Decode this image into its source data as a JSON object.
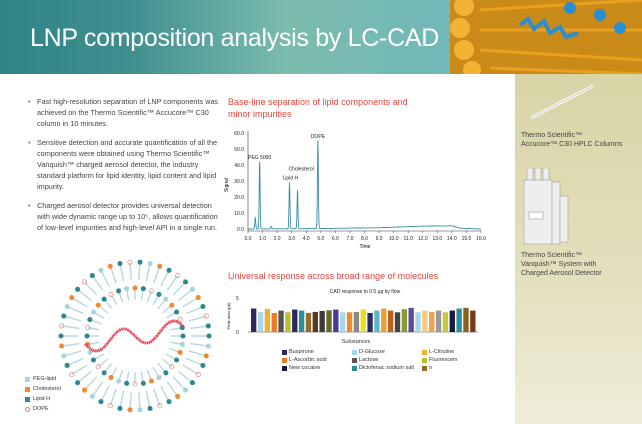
{
  "header": {
    "title": "LNP composition analysis by LC-CAD"
  },
  "bullets": [
    "Fast high-resolution separation of LNP components was achieved on the Thermo Scientific™ Accucore™ C30 column in 10 minutes.",
    "Sensitive detection and accurate quantification of all the components were obtained using Thermo Scientific™ Vanquish™ charged aerosol detector, the industry standard platform for lipid identity, lipid content and lipid impurity.",
    "Charged aerosol detector provides universal detection with wide dynamic range up to 10⁵, allows quantification of low-level impurities and high-level API in a single run."
  ],
  "lnp_legend": [
    {
      "label": "PEG-lipid",
      "color": "#a8d4e0"
    },
    {
      "label": "Cholesterol",
      "color": "#f08a30"
    },
    {
      "label": "Lipid H",
      "color": "#2a8a90"
    },
    {
      "label": "DOPE",
      "color": "#e88080"
    }
  ],
  "sidebar": {
    "column_caption": [
      "Thermo Scientific™",
      "Accucore™ C30 HPLC Columns"
    ],
    "system_caption": [
      "Thermo Scientific™",
      "Vanquish™ System with",
      "Charged Aerosol Detector"
    ]
  },
  "chart_data": [
    {
      "type": "line",
      "title": "Base-line separation of lipid components and minor impurities",
      "xlabel": "Time",
      "ylabel": "Signal",
      "xlim": [
        0,
        16
      ],
      "ylim": [
        0,
        60
      ],
      "xticks": [
        "0.0",
        "1.0",
        "2.0",
        "3.0",
        "4.0",
        "5.0",
        "6.0",
        "7.0",
        "8.0",
        "9.0",
        "10.0",
        "11.0",
        "12.0",
        "13.0",
        "14.0",
        "15.0",
        "16.0"
      ],
      "yticks": [
        "0.0",
        "10.0",
        "20.0",
        "30.0",
        "40.0",
        "50.0",
        "60.0"
      ],
      "peaks": [
        {
          "x": 0.5,
          "y": 7,
          "label": ""
        },
        {
          "x": 0.8,
          "y": 42,
          "label": "PEG 5000"
        },
        {
          "x": 1.6,
          "y": 1.5,
          "label": ""
        },
        {
          "x": 2.85,
          "y": 29,
          "label": "Lipid  H"
        },
        {
          "x": 3.4,
          "y": 24,
          "label": "Cholesterol"
        },
        {
          "x": 4.8,
          "y": 55,
          "label": "DOPE"
        }
      ],
      "baseline": [
        [
          0,
          0
        ],
        [
          5,
          0.3
        ],
        [
          9,
          0.8
        ],
        [
          12,
          1.8
        ],
        [
          14,
          2
        ],
        [
          14.6,
          0.5
        ],
        [
          16,
          0
        ]
      ],
      "color": "#3a8fa0"
    },
    {
      "type": "bar",
      "title": "Universal response across broad range of molecules",
      "subtitle": "CAD response to 0.5 µg by flow",
      "xlabel": "Substances",
      "ylabel": "Peak area (pA)",
      "ylim": [
        0,
        5
      ],
      "yticks": [
        "0",
        "5"
      ],
      "values": [
        3.45,
        2.95,
        3.4,
        2.8,
        3.15,
        2.9,
        3.3,
        3.15,
        2.8,
        2.95,
        3.1,
        3.2,
        3.3,
        2.9,
        2.9,
        2.95,
        3.3,
        2.8,
        3.15,
        3.45,
        3.15,
        2.9,
        3.35,
        3.55,
        2.9,
        3.15,
        2.95,
        3.15,
        2.9,
        3.15,
        3.45,
        3.55,
        3.15
      ],
      "colors": [
        "#2c2a5e",
        "#a8d8e8",
        "#f0b030",
        "#f07a20",
        "#555",
        "#b8c030",
        "#2c2a5e",
        "#2a8f98",
        "#9a6a28",
        "#5a3a20",
        "#3a3a3a",
        "#6a6a30",
        "#4a3a9a",
        "#a8d8e8",
        "#f08a30",
        "#888",
        "#e8e020",
        "#2c2a5e",
        "#5ab8c8",
        "#e8a030",
        "#c06020",
        "#444",
        "#8a9a30",
        "#5a4aa0",
        "#a8d8e8",
        "#f8c880",
        "#f0a050",
        "#999",
        "#c8c840",
        "#1a1a40",
        "#2a8f98",
        "#8a6020",
        "#7a3a18"
      ],
      "legend": [
        {
          "label": "Buspirone",
          "color": "#2c2a5e"
        },
        {
          "label": "D-Glucose",
          "color": "#a8d8e8"
        },
        {
          "label": "L-Citruline",
          "color": "#f0b030"
        },
        {
          "label": "L-Ascorbic acid",
          "color": "#f07a20"
        },
        {
          "label": "Lactose",
          "color": "#555"
        },
        {
          "label": "Fluorescein",
          "color": "#b8c030"
        },
        {
          "label": "New cocaine",
          "color": "#1a1a40"
        },
        {
          "label": "Diclofenac sodium salt",
          "color": "#2a8f98"
        },
        {
          "label": "n",
          "color": "#9a6a28"
        }
      ]
    }
  ]
}
